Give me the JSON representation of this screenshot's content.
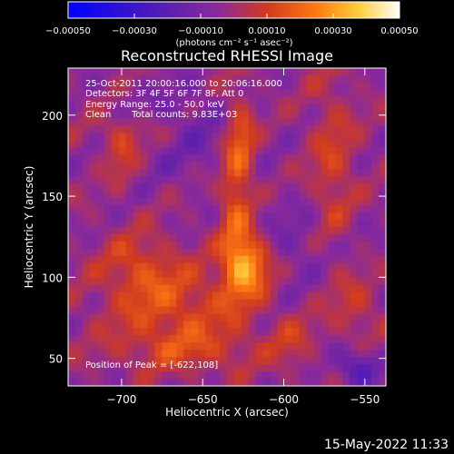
{
  "chart_data": {
    "type": "heatmap",
    "title": "Reconstructed RHESSI Image",
    "xlabel": "Heliocentric X (arcsec)",
    "ylabel": "Heliocentric Y (arcsec)",
    "xlim": [
      -733,
      -537
    ],
    "ylim": [
      33,
      229
    ],
    "x_ticks": [
      -700,
      -650,
      -600,
      -550
    ],
    "x_tick_labels": [
      "−700",
      "−650",
      "−600",
      "−550"
    ],
    "y_ticks": [
      50,
      100,
      150,
      200
    ],
    "y_tick_labels": [
      "50",
      "100",
      "150",
      "200"
    ],
    "colorbar": {
      "range": [
        -0.0005,
        0.0005
      ],
      "tick_values": [
        -0.0005,
        -0.0003,
        -0.0001,
        0.0001,
        0.0003,
        0.0005
      ],
      "tick_labels": [
        "−0.00050",
        "−0.00030",
        "−0.00010",
        "0.00010",
        "0.00030",
        "0.00050"
      ],
      "units": "(photons cm⁻² s⁻¹ asec⁻²)",
      "colors": [
        "#0000ff",
        "#5a1fb0",
        "#8a2a9a",
        "#d03a20",
        "#ff7a10",
        "#ffd040",
        "#ffffff"
      ]
    },
    "peak": {
      "x": -622,
      "y": 108,
      "value": 0.0005
    },
    "blobs": [
      {
        "x": -622,
        "y": 108,
        "sx": 10,
        "sy": 14,
        "a": 0.00032
      },
      {
        "x": -630,
        "y": 150,
        "sx": 7,
        "sy": 40,
        "a": 0.00018
      },
      {
        "x": -625,
        "y": 185,
        "sx": 6,
        "sy": 18,
        "a": 0.00013
      },
      {
        "x": -668,
        "y": 83,
        "sx": 30,
        "sy": 18,
        "a": 0.00016
      },
      {
        "x": -690,
        "y": 108,
        "sx": 16,
        "sy": 14,
        "a": 0.00012
      },
      {
        "x": -700,
        "y": 175,
        "sx": 7,
        "sy": 12,
        "a": 0.00013
      },
      {
        "x": -660,
        "y": 55,
        "sx": 30,
        "sy": 10,
        "a": 0.00012
      },
      {
        "x": -690,
        "y": 190,
        "sx": 20,
        "sy": 8,
        "a": 9e-05
      },
      {
        "x": -570,
        "y": 160,
        "sx": 10,
        "sy": 45,
        "a": 0.00013
      },
      {
        "x": -595,
        "y": 60,
        "sx": 9,
        "sy": 12,
        "a": 0.0001
      },
      {
        "x": -555,
        "y": 80,
        "sx": 10,
        "sy": 15,
        "a": 0.0001
      },
      {
        "x": -555,
        "y": 45,
        "sx": 10,
        "sy": 8,
        "a": -0.0002
      },
      {
        "x": -660,
        "y": 190,
        "sx": 25,
        "sy": 20,
        "a": -0.0001
      },
      {
        "x": -590,
        "y": 120,
        "sx": 25,
        "sy": 20,
        "a": -8e-05
      }
    ]
  },
  "annotation": {
    "date_range": "25-Oct-2011 20:00:16.000 to 20:06:16.000",
    "detectors": "Detectors: 3F 4F 5F 6F 7F 8F, Att 0",
    "energy": "Energy Range: 25.0 - 50.0 keV",
    "algorithm": "Clean",
    "total_counts": "Total counts: 9.83E+03",
    "peak_position": "Position of Peak = [-622,108]"
  },
  "timestamp": "15-May-2022 11:33"
}
